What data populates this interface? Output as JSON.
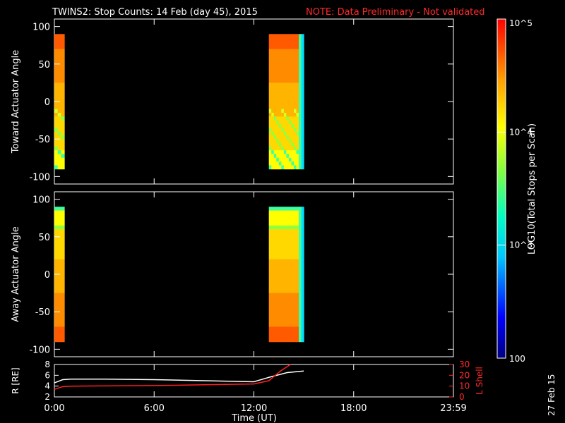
{
  "title": {
    "main": "TWINS2: Stop Counts: 14 Feb (day  45), 2015",
    "note": "NOTE: Data Preliminary - Not validated"
  },
  "colorbar": {
    "label": "LOG10(Total Stops per Scan)",
    "ticks": [
      "10^5",
      "10^4",
      "10^3",
      "100"
    ],
    "range": [
      100,
      100000
    ],
    "scale": "log"
  },
  "footer": {
    "date_stamp": "27 Feb 15"
  },
  "chart_data": [
    {
      "type": "heatmap",
      "ylabel": "Toward Actuator Angle",
      "ylim": [
        -110,
        110
      ],
      "yticks": [
        100,
        50,
        0,
        -50,
        -100
      ],
      "xlim": [
        0,
        24
      ],
      "angle_range": [
        -90,
        90
      ],
      "data_intervals_hours": [
        [
          0.0,
          0.6
        ],
        [
          12.9,
          15.0
        ]
      ],
      "notes_visible": "log counts ~1e3-1e5"
    },
    {
      "type": "heatmap",
      "ylabel": "Away Actuator Angle",
      "ylim": [
        -110,
        110
      ],
      "yticks": [
        100,
        50,
        0,
        -50,
        -100
      ],
      "xlim": [
        0,
        24
      ],
      "angle_range": [
        -90,
        90
      ],
      "data_intervals_hours": [
        [
          0.0,
          0.6
        ],
        [
          12.9,
          15.0
        ]
      ]
    },
    {
      "type": "line",
      "xlabel": "Time (UT)",
      "xticks": [
        "0:00",
        "6:00",
        "12:00",
        "18:00",
        "23:59"
      ],
      "xlim": [
        0,
        24
      ],
      "ylabel_left": "R [RE]",
      "ylim_left": [
        2,
        8
      ],
      "yticks_left": [
        8,
        6,
        4,
        2
      ],
      "ylabel_right": "L Shell",
      "ylim_right": [
        0,
        30
      ],
      "yticks_right": [
        30,
        20,
        10,
        0
      ],
      "series": [
        {
          "name": "R [RE]",
          "color": "#ffffff",
          "x": [
            0,
            0.5,
            1,
            3,
            6,
            9,
            12,
            13,
            14,
            15
          ],
          "y": [
            4.6,
            5.2,
            5.3,
            5.3,
            5.2,
            5.0,
            4.8,
            5.7,
            6.5,
            6.8
          ]
        },
        {
          "name": "L Shell",
          "color": "#ff2020",
          "x": [
            0,
            0.5,
            1,
            3,
            6,
            9,
            12,
            12.9,
            13.6,
            14.2
          ],
          "y": [
            7,
            9.5,
            10,
            10.2,
            10.5,
            11.2,
            12,
            15,
            24,
            30
          ]
        }
      ]
    }
  ]
}
